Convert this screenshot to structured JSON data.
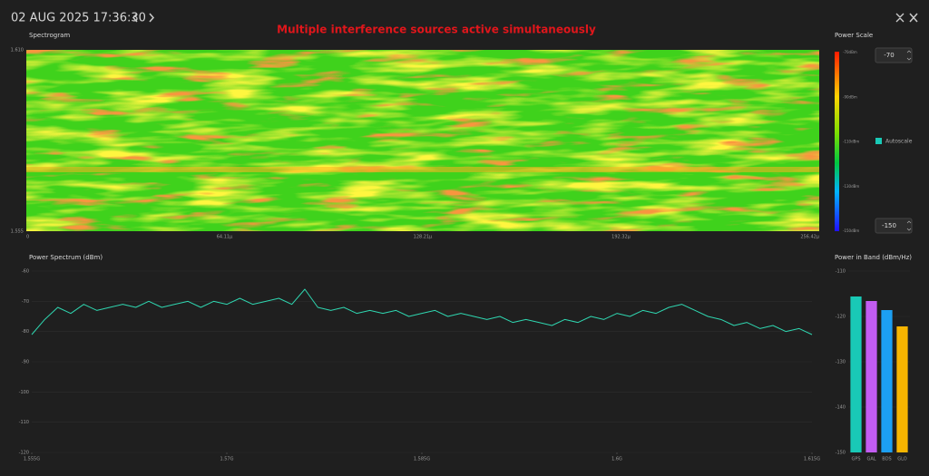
{
  "header": {
    "datetime": "02 AUG 2025 17:36:30"
  },
  "annotation": "Multiple interference sources active simultaneously",
  "spectrogram": {
    "title": "Spectrogram",
    "y_labels": [
      "1.610",
      "1.555"
    ],
    "x_labels": [
      "0",
      "64.11µ",
      "128.21µ",
      "192.32µ",
      "256.42µ"
    ]
  },
  "power_scale": {
    "title": "Power Scale",
    "labels": [
      "-70dBm",
      "-90dBm",
      "-110dBm",
      "-130dBm",
      "-150dBm"
    ],
    "max_input": "-70",
    "min_input": "-150",
    "autoscale": "Autoscale"
  },
  "chart_data": [
    {
      "type": "line",
      "title": "Power Spectrum (dBm)",
      "color": "#2fd6b0",
      "x": [
        1.555,
        1.556,
        1.557,
        1.558,
        1.559,
        1.56,
        1.561,
        1.562,
        1.563,
        1.564,
        1.565,
        1.566,
        1.567,
        1.568,
        1.569,
        1.57,
        1.571,
        1.572,
        1.573,
        1.574,
        1.575,
        1.576,
        1.577,
        1.578,
        1.579,
        1.58,
        1.581,
        1.582,
        1.583,
        1.584,
        1.585,
        1.586,
        1.587,
        1.588,
        1.589,
        1.59,
        1.591,
        1.592,
        1.593,
        1.594,
        1.595,
        1.596,
        1.597,
        1.598,
        1.599,
        1.6,
        1.601,
        1.602,
        1.603,
        1.604,
        1.605,
        1.606,
        1.607,
        1.608,
        1.609,
        1.61,
        1.611,
        1.612,
        1.613,
        1.614,
        1.615
      ],
      "values": [
        -81,
        -76,
        -72,
        -74,
        -71,
        -73,
        -72,
        -71,
        -72,
        -70,
        -72,
        -71,
        -70,
        -72,
        -70,
        -71,
        -69,
        -71,
        -70,
        -69,
        -71,
        -66,
        -72,
        -73,
        -72,
        -74,
        -73,
        -74,
        -73,
        -75,
        -74,
        -73,
        -75,
        -74,
        -75,
        -76,
        -75,
        -77,
        -76,
        -77,
        -78,
        -76,
        -77,
        -75,
        -76,
        -74,
        -75,
        -73,
        -74,
        -72,
        -71,
        -73,
        -75,
        -76,
        -78,
        -77,
        -79,
        -78,
        -80,
        -79,
        -81
      ],
      "xlim": [
        1.555,
        1.615
      ],
      "xticks": [
        {
          "value": 1.555,
          "label": "1.555G"
        },
        {
          "value": 1.57,
          "label": "1.57G"
        },
        {
          "value": 1.585,
          "label": "1.585G"
        },
        {
          "value": 1.6,
          "label": "1.6G"
        },
        {
          "value": 1.615,
          "label": "1.615G"
        }
      ],
      "ylim": [
        -120,
        -60
      ],
      "yticks": [
        -60,
        -70,
        -80,
        -90,
        -100,
        -110,
        -120
      ],
      "grid": true
    },
    {
      "type": "bar",
      "title": "Power in Band (dBm/Hz)",
      "categories": [
        "GPS",
        "GAL",
        "BDS",
        "GLO"
      ],
      "values": [
        -115.6,
        -116.6,
        -118.6,
        -122.2
      ],
      "colors": [
        "#19c9b6",
        "#c25cf2",
        "#1c9ff2",
        "#f7b500"
      ],
      "ylim": [
        -150,
        -110
      ],
      "yticks": [
        -110,
        -120,
        -130,
        -140,
        -150
      ],
      "grid": true
    }
  ]
}
